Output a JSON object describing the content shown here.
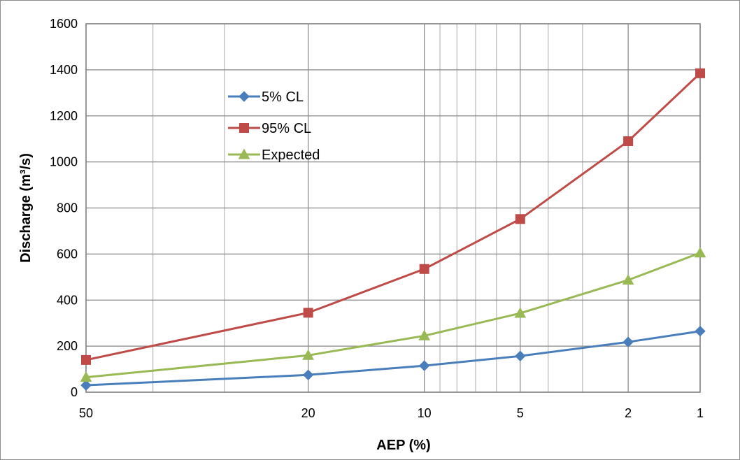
{
  "chart_data": {
    "type": "line",
    "title": "",
    "xlabel": "AEP (%)",
    "ylabel": "Discharge (m³/s)",
    "x_scale": "probability-log",
    "x_ticks": [
      "50",
      "20",
      "10",
      "5",
      "2",
      "1"
    ],
    "x_tick_values": [
      50,
      20,
      10,
      5,
      2,
      1
    ],
    "ylim": [
      0,
      1600
    ],
    "y_ticks": [
      0,
      200,
      400,
      600,
      800,
      1000,
      1200,
      1400,
      1600
    ],
    "grid": true,
    "legend_position": "upper-left-inside",
    "x": [
      50,
      20,
      10,
      5,
      2,
      1
    ],
    "series": [
      {
        "name": "5% CL",
        "color": "#4a7ebb",
        "marker": "diamond",
        "values": [
          30,
          75,
          115,
          157,
          218,
          265
        ]
      },
      {
        "name": "95% CL",
        "color": "#be4b48",
        "marker": "square",
        "values": [
          140,
          345,
          535,
          752,
          1090,
          1385
        ]
      },
      {
        "name": "Expected",
        "color": "#98b954",
        "marker": "triangle",
        "values": [
          65,
          160,
          245,
          343,
          487,
          605
        ]
      }
    ]
  }
}
